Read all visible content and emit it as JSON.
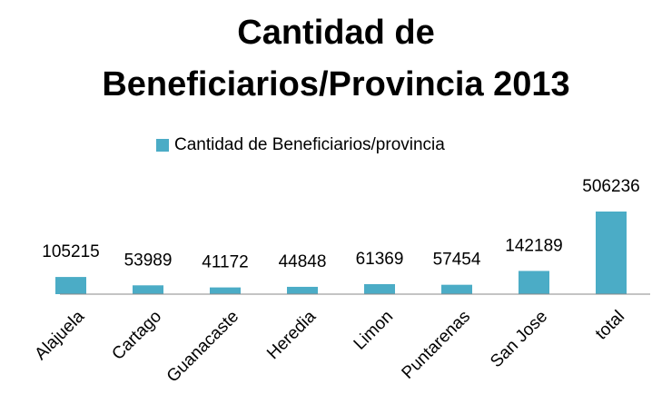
{
  "chart_data": {
    "type": "bar",
    "title": "Cantidad de Beneficiarios/Provincia 2013",
    "categories": [
      "Alajuela",
      "Cartago",
      "Guanacaste",
      "Heredia",
      "Limon",
      "Puntarenas",
      "San Jose",
      "total"
    ],
    "series": [
      {
        "name": "Cantidad de Beneficiarios/provincia",
        "color": "#4bacc6",
        "values": [
          105215,
          53989,
          41172,
          44848,
          61369,
          57454,
          142189,
          506236
        ]
      }
    ],
    "legend": "top"
  }
}
